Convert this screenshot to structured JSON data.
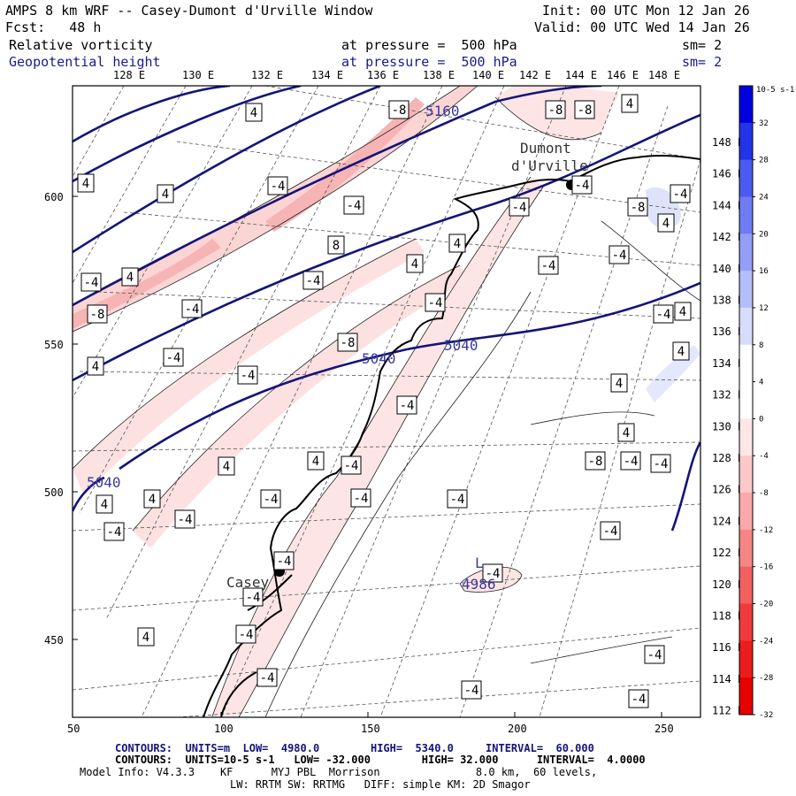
{
  "header": {
    "title": "AMPS 8 km WRF -- Casey-Dumont d'Urville Window",
    "init": "Init: 00 UTC Mon 12 Jan 26",
    "forecast": "Fcst:   48 h",
    "valid": "Valid: 00 UTC Wed 14 Jan 26",
    "field1": {
      "name": "Relative vorticity",
      "level": "at pressure =  500 hPa",
      "smooth": "sm= 2"
    },
    "field2": {
      "name": "Geopotential height",
      "level": "at pressure =  500 hPa",
      "smooth": "sm= 2"
    }
  },
  "lon_labels": [
    "128 E",
    "130 E",
    "132 E",
    "134 E",
    "136 E",
    "138 E",
    "140 E",
    "142 E",
    "144 E",
    "146 E",
    "148 E"
  ],
  "lat_labels_right": [
    "148 E",
    "146 E",
    "144 E",
    "142 E",
    "140 E",
    "138 E",
    "136 E",
    "134 E",
    "132 E",
    "130 E",
    "128 E",
    "126 E",
    "124 E",
    "122 E",
    "120 E",
    "118 E",
    "116 E",
    "114 E",
    "112 E"
  ],
  "x_axis": [
    "50",
    "100",
    "150",
    "200",
    "250"
  ],
  "y_axis": [
    "600",
    "550",
    "500",
    "450"
  ],
  "colorbar": {
    "unit": "10-5 s-1",
    "labels": [
      "32",
      "28",
      "24",
      "20",
      "16",
      "12",
      "8",
      "4",
      "0",
      "-4",
      "-8",
      "-12",
      "-16",
      "-20",
      "-24",
      "-28",
      "-32"
    ],
    "colors": [
      "#0000e0",
      "#2233e8",
      "#4a5bef",
      "#6f7cf3",
      "#939ef6",
      "#b6bef9",
      "#d8dcfc",
      "#ffffff",
      "#ffffff",
      "#fde6e6",
      "#fbc9c9",
      "#f9a9a9",
      "#f68686",
      "#f26060",
      "#ef3b3b",
      "#ec1c1c",
      "#e80000"
    ]
  },
  "map_labels": {
    "dumont_line1": "Dumont",
    "dumont_line2": "d'Urville",
    "casey": "Casey",
    "low": "L",
    "low_value": "4986",
    "height_labels": [
      "5160",
      "5040",
      "5040",
      "5040"
    ]
  },
  "vort_labels": [
    "4",
    "-8",
    "-8",
    "-8",
    "4",
    "4",
    "-4",
    "4",
    "-4",
    "-4",
    "-8",
    "-4",
    "4",
    "4",
    "8",
    "-4",
    "4",
    "-4",
    "4",
    "-4",
    "-8",
    "4",
    "-4",
    "-4",
    "-8",
    "4",
    "4",
    "-4",
    "4",
    "-4",
    "-4",
    "4",
    "4",
    "-4",
    "-8",
    "-4",
    "-4",
    "-4",
    "4",
    "4",
    "-4",
    "-4",
    "-4",
    "-4",
    "-4",
    "-4",
    "-4",
    "-4",
    "-4",
    "-4",
    "-4",
    "4",
    "-4",
    "-4",
    "-4",
    "-4",
    "-4",
    "4"
  ],
  "footer": {
    "line1": "CONTOURS:  UNITS=m  LOW=  4980.0        HIGH=  5340.0     INTERVAL=  60.000",
    "line2": "CONTOURS:  UNITS=10-5 s-1   LOW= -32.000        HIGH= 32.000      INTERVAL=  4.0000",
    "line3": "Model Info: V4.3.3    KF      MYJ PBL  Morrison               8.0 km,  60 levels,",
    "line4": "LW: RRTM SW: RRTMG   DIFF: simple KM: 2D Smagor"
  }
}
